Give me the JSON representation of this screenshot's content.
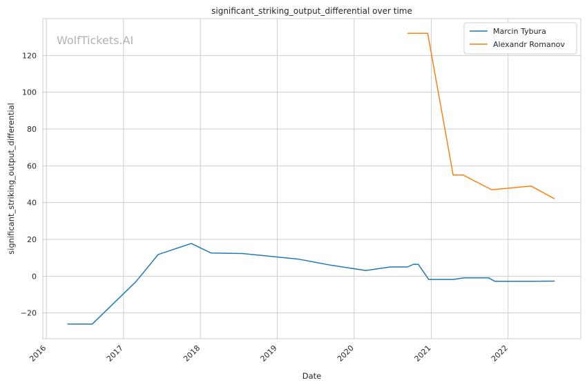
{
  "chart_data": {
    "type": "line",
    "title": "significant_striking_output_differential over time",
    "xlabel": "Date",
    "ylabel": "significant_striking_output_differential",
    "watermark": "WolfTickets.AI",
    "x_ticks": [
      "2016",
      "2017",
      "2018",
      "2019",
      "2020",
      "2021",
      "2022"
    ],
    "y_ticks": [
      "−20",
      "0",
      "20",
      "40",
      "60",
      "80",
      "100",
      "120"
    ],
    "xlim": [
      "2015-12-15",
      "2022-12-12"
    ],
    "ylim": [
      -34,
      140
    ],
    "grid": true,
    "legend_position": "top-right",
    "series": [
      {
        "name": "Marcin Tybura",
        "color": "#1f77b4",
        "points": [
          [
            "2016-04-10",
            -26
          ],
          [
            "2016-08-06",
            -26
          ],
          [
            "2017-03-01",
            -3
          ],
          [
            "2017-06-15",
            11.8
          ],
          [
            "2017-11-19",
            17.8
          ],
          [
            "2018-02-20",
            12.6
          ],
          [
            "2018-07-20",
            12.3
          ],
          [
            "2019-04-15",
            9.2
          ],
          [
            "2019-09-10",
            6
          ],
          [
            "2020-02-25",
            3.1
          ],
          [
            "2020-06-20",
            5
          ],
          [
            "2020-09-10",
            5
          ],
          [
            "2020-10-10",
            6.5
          ],
          [
            "2020-11-01",
            6.4
          ],
          [
            "2020-12-20",
            -1.8
          ],
          [
            "2021-04-15",
            -1.8
          ],
          [
            "2021-06-05",
            -0.9
          ],
          [
            "2021-09-30",
            -0.9
          ],
          [
            "2021-10-30",
            -2.8
          ],
          [
            "2022-04-20",
            -2.8
          ],
          [
            "2022-08-10",
            -2.7
          ]
        ]
      },
      {
        "name": "Alexandr Romanov",
        "color": "#ff7f0e",
        "points": [
          [
            "2020-09-10",
            132
          ],
          [
            "2020-12-15",
            132
          ],
          [
            "2021-04-15",
            55
          ],
          [
            "2021-06-01",
            55
          ],
          [
            "2021-10-15",
            47
          ],
          [
            "2021-11-30",
            47.5
          ],
          [
            "2022-04-20",
            49
          ],
          [
            "2022-08-10",
            42
          ]
        ]
      }
    ]
  }
}
